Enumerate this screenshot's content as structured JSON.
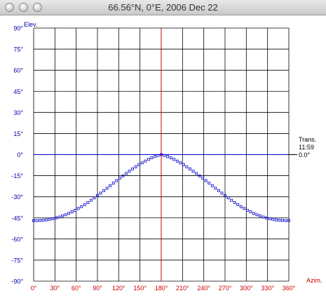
{
  "window": {
    "title": "66.56°N, 0°E, 2006 Dec 22",
    "buttons": [
      "close",
      "minimize",
      "zoom"
    ]
  },
  "colors": {
    "axis_left": "#0000aa",
    "axis_bottom": "#cc0000",
    "grid": "#000000",
    "horizon": "#0000cc",
    "transit_line": "#cc0000",
    "points": "#0000cc",
    "annotation": "#000000"
  },
  "chart_data": {
    "type": "scatter",
    "xlabel": "Azim.",
    "ylabel": "Elev.",
    "xlim": [
      0,
      360
    ],
    "ylim": [
      -90,
      90
    ],
    "x_ticks": [
      "0°",
      "30°",
      "60°",
      "90°",
      "120°",
      "150°",
      "180°",
      "210°",
      "240°",
      "270°",
      "300°",
      "330°",
      "360°"
    ],
    "y_ticks": [
      "90°",
      "75°",
      "60°",
      "45°",
      "30°",
      "15°",
      "0°",
      "-15°",
      "-30°",
      "-45°",
      "-60°",
      "-75°",
      "-90°"
    ],
    "grid": true,
    "transit": {
      "label": "Trans.",
      "time": "11:59",
      "elevation": "0.0°",
      "azimuth": 180
    },
    "series": [
      {
        "points": [
          [
            0,
            -46.9
          ],
          [
            4.5,
            -46.9
          ],
          [
            9,
            -46.8
          ],
          [
            13.5,
            -46.6
          ],
          [
            18,
            -46.4
          ],
          [
            22.5,
            -46
          ],
          [
            27,
            -45.6
          ],
          [
            31.5,
            -45
          ],
          [
            36,
            -44.4
          ],
          [
            40.5,
            -43.6
          ],
          [
            45,
            -42.8
          ],
          [
            49.5,
            -41.8
          ],
          [
            54,
            -40.7
          ],
          [
            58.5,
            -39.6
          ],
          [
            63,
            -38.3
          ],
          [
            67.5,
            -37
          ],
          [
            72,
            -35.6
          ],
          [
            76.5,
            -34.1
          ],
          [
            81,
            -32.5
          ],
          [
            85.5,
            -30.8
          ],
          [
            90,
            -29.1
          ],
          [
            94.5,
            -27.4
          ],
          [
            99,
            -25.6
          ],
          [
            103.5,
            -23.9
          ],
          [
            108,
            -22.1
          ],
          [
            112.5,
            -20.3
          ],
          [
            117,
            -18.5
          ],
          [
            121.5,
            -16.8
          ],
          [
            126,
            -15.1
          ],
          [
            130.5,
            -13.4
          ],
          [
            135,
            -11.8
          ],
          [
            139.5,
            -10.2
          ],
          [
            144,
            -8.7
          ],
          [
            148.5,
            -7.2
          ],
          [
            153,
            -5.9
          ],
          [
            157.5,
            -4.6
          ],
          [
            162,
            -3.4
          ],
          [
            166.5,
            -2.3
          ],
          [
            171,
            -1.4
          ],
          [
            175.5,
            -0.6
          ],
          [
            180,
            0
          ],
          [
            184.5,
            -0.6
          ],
          [
            189,
            -1.4
          ],
          [
            193.5,
            -2.3
          ],
          [
            198,
            -3.4
          ],
          [
            202.5,
            -4.6
          ],
          [
            207,
            -5.9
          ],
          [
            211.5,
            -7.2
          ],
          [
            216,
            -8.7
          ],
          [
            220.5,
            -10.2
          ],
          [
            225,
            -11.8
          ],
          [
            229.5,
            -13.4
          ],
          [
            234,
            -15.1
          ],
          [
            238.5,
            -16.8
          ],
          [
            243,
            -18.5
          ],
          [
            247.5,
            -20.3
          ],
          [
            252,
            -22.1
          ],
          [
            256.5,
            -23.9
          ],
          [
            261,
            -25.6
          ],
          [
            265.5,
            -27.4
          ],
          [
            270,
            -29.1
          ],
          [
            274.5,
            -30.8
          ],
          [
            279,
            -32.5
          ],
          [
            283.5,
            -34.1
          ],
          [
            288,
            -35.6
          ],
          [
            292.5,
            -37
          ],
          [
            297,
            -38.3
          ],
          [
            301.5,
            -39.6
          ],
          [
            306,
            -40.7
          ],
          [
            310.5,
            -41.8
          ],
          [
            315,
            -42.8
          ],
          [
            319.5,
            -43.6
          ],
          [
            324,
            -44.4
          ],
          [
            328.5,
            -45
          ],
          [
            333,
            -45.6
          ],
          [
            337.5,
            -46
          ],
          [
            342,
            -46.4
          ],
          [
            346.5,
            -46.6
          ],
          [
            351,
            -46.8
          ],
          [
            355.5,
            -46.9
          ],
          [
            360,
            -46.9
          ]
        ]
      }
    ]
  }
}
